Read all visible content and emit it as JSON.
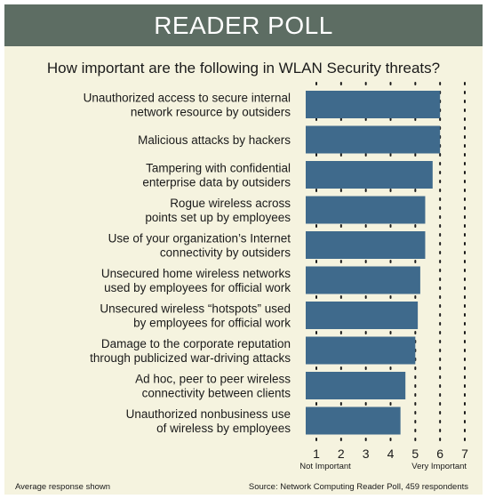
{
  "header": {
    "title": "READER POLL"
  },
  "colors": {
    "header_bg": "#5d6d63",
    "panel_bg": "#f5f3df",
    "bar": "#3f6a8c"
  },
  "chart_data": {
    "type": "bar",
    "orientation": "horizontal",
    "title": "How important are the following in WLAN Security threats?",
    "categories": [
      [
        "Unauthorized access to secure internal",
        "network resource by outsiders"
      ],
      [
        "Malicious attacks by hackers"
      ],
      [
        "Tampering with confidential",
        "enterprise data by outsiders"
      ],
      [
        "Rogue wireless across",
        "points set up by employees"
      ],
      [
        "Use of your organization’s Internet",
        "connectivity by outsiders"
      ],
      [
        "Unsecured home wireless networks",
        "used by employees for official work"
      ],
      [
        "Unsecured wireless “hotspots” used",
        "by employees for official work"
      ],
      [
        "Damage to the corporate reputation",
        "through publicized war-driving attacks"
      ],
      [
        "Ad hoc, peer to peer wireless",
        "connectivity between clients"
      ],
      [
        "Unauthorized nonbusiness use",
        "of wireless by employees"
      ]
    ],
    "values": [
      6.0,
      6.0,
      5.7,
      5.4,
      5.4,
      5.2,
      5.1,
      5.0,
      4.6,
      4.4
    ],
    "xlim": [
      1,
      7
    ],
    "ticks": [
      "1",
      "2",
      "3",
      "4",
      "5",
      "6",
      "7"
    ],
    "low_label": "Not Important",
    "high_label": "Very Important",
    "grid": "dotted vertical"
  },
  "footer": {
    "note": "Average response shown",
    "source": "Source: Network Computing Reader Poll, 459 respondents"
  }
}
